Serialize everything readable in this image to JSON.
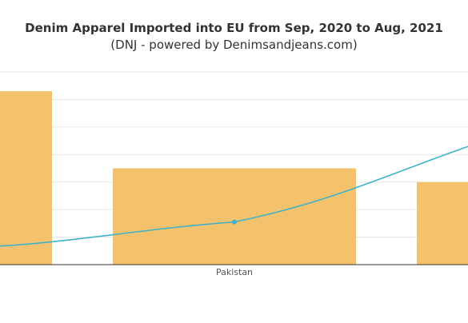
{
  "title": "Denim Apparel Imported into EU from Sep, 2020 to Aug, 2021",
  "subtitle": "(DNJ - powered by Denimsandjeans.com)",
  "chart_data": {
    "type": "bar",
    "categories": [
      "",
      "Pakistan",
      ""
    ],
    "series": [
      {
        "type": "bar",
        "values": [
          6.3,
          3.5,
          3.0
        ],
        "color": "#f4c26d"
      },
      {
        "type": "line",
        "values": [
          0.6,
          1.55,
          5.1
        ],
        "color": "#3fb1c8",
        "marker_on": "Pakistan"
      }
    ],
    "ylim": [
      0,
      7
    ],
    "grid": true,
    "legend": "none"
  }
}
